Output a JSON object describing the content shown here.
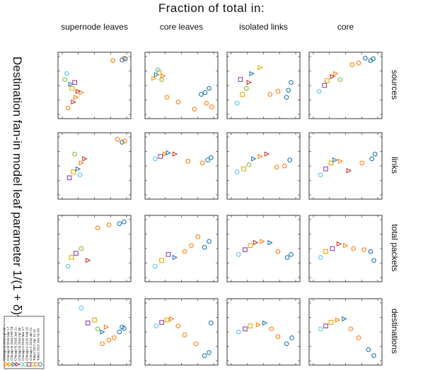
{
  "title": "Fraction of total in:",
  "y_axis_label": "Destination fan-in model leaf parameter 1/(1 + δ)^α",
  "columns": [
    "supernode leaves",
    "core leaves",
    "isolated links",
    "core"
  ],
  "rows": [
    "sources",
    "links",
    "total packets",
    "destinations"
  ],
  "legend_items": [
    {
      "label": "Tokyo 2015 Dec 02-03",
      "marker": "circle",
      "color": "#1f77b4"
    },
    {
      "label": "Tokyo 2017 Apr 12-13",
      "marker": "circle",
      "color": "#ff7f0e"
    },
    {
      "label": "Chicago A 2016 Jan 21",
      "marker": "square",
      "color": "#e6a800"
    },
    {
      "label": "Chicago A 2016 Feb 18",
      "marker": "square",
      "color": "#8e44ad"
    },
    {
      "label": "Chicago A 2016 Mar 17",
      "marker": "circle",
      "color": "#7fbf3f"
    },
    {
      "label": "Chicago B 2016 Apr 06",
      "marker": "circle",
      "color": "#56c6e8"
    },
    {
      "label": "Chicago B 2016 Jan 21",
      "marker": "triangle",
      "color": "#c0392b"
    },
    {
      "label": "Chicago B 2016 Feb 18",
      "marker": "triangle",
      "color": "#1f77b4"
    },
    {
      "label": "Chicago B 2016 Mar 17",
      "marker": "triangle",
      "color": "#e6a800"
    },
    {
      "label": "Chicago B 2016 Apr 06",
      "marker": "triangle",
      "color": "#ff7f0e"
    }
  ],
  "chart_data": {
    "type": "scatter",
    "layout": "4x4 facet grid, rotated 90 degrees",
    "note": "Tick labels are rotated and illegible at this resolution; values are approximate fractions (0 to 1) read from marker positions.",
    "xlim": [
      0,
      1
    ],
    "ylim": [
      0,
      1
    ],
    "grid": false,
    "legend_position": "bottom-left",
    "panels": [
      {
        "row": "sources",
        "col": "supernode leaves",
        "points": [
          [
            0.1,
            0.12,
            1
          ],
          [
            0.18,
            0.22,
            6
          ],
          [
            0.22,
            0.3,
            9
          ],
          [
            0.3,
            0.38,
            9
          ],
          [
            0.16,
            0.45,
            2
          ],
          [
            0.2,
            0.55,
            3
          ],
          [
            0.05,
            0.6,
            4
          ],
          [
            0.08,
            0.7,
            5
          ],
          [
            0.14,
            0.52,
            7
          ],
          [
            0.25,
            0.4,
            6
          ],
          [
            0.92,
            0.93,
            0
          ],
          [
            0.95,
            0.96,
            1
          ],
          [
            0.97,
            0.95,
            0
          ],
          [
            0.78,
            0.92,
            1
          ]
        ]
      },
      {
        "row": "sources",
        "col": "core leaves",
        "points": [
          [
            0.08,
            0.62,
            8
          ],
          [
            0.12,
            0.68,
            7
          ],
          [
            0.16,
            0.72,
            2
          ],
          [
            0.2,
            0.6,
            4
          ],
          [
            0.14,
            0.76,
            5
          ],
          [
            0.22,
            0.66,
            9
          ],
          [
            0.28,
            0.3,
            1
          ],
          [
            0.45,
            0.22,
            1
          ],
          [
            0.7,
            0.1,
            1
          ],
          [
            0.8,
            0.35,
            0
          ],
          [
            0.86,
            0.38,
            0
          ],
          [
            0.92,
            0.45,
            0
          ],
          [
            0.96,
            0.14,
            1
          ],
          [
            0.88,
            0.2,
            1
          ]
        ]
      },
      {
        "row": "sources",
        "col": "isolated links",
        "points": [
          [
            0.1,
            0.2,
            5
          ],
          [
            0.18,
            0.35,
            2
          ],
          [
            0.24,
            0.45,
            4
          ],
          [
            0.15,
            0.6,
            3
          ],
          [
            0.28,
            0.55,
            6
          ],
          [
            0.32,
            0.7,
            7
          ],
          [
            0.45,
            0.8,
            8
          ],
          [
            0.6,
            0.35,
            1
          ],
          [
            0.72,
            0.4,
            1
          ],
          [
            0.85,
            0.3,
            0
          ],
          [
            0.88,
            0.42,
            0
          ],
          [
            0.92,
            0.55,
            0
          ]
        ]
      },
      {
        "row": "sources",
        "col": "core",
        "points": [
          [
            0.1,
            0.4,
            5
          ],
          [
            0.18,
            0.5,
            3
          ],
          [
            0.22,
            0.58,
            2
          ],
          [
            0.3,
            0.65,
            6
          ],
          [
            0.35,
            0.7,
            9
          ],
          [
            0.42,
            0.6,
            4
          ],
          [
            0.6,
            0.85,
            1
          ],
          [
            0.7,
            0.88,
            1
          ],
          [
            0.88,
            0.92,
            0
          ],
          [
            0.92,
            0.95,
            0
          ],
          [
            0.8,
            0.96,
            0
          ]
        ]
      },
      {
        "row": "links",
        "col": "supernode leaves",
        "points": [
          [
            0.12,
            0.3,
            3
          ],
          [
            0.18,
            0.4,
            2
          ],
          [
            0.25,
            0.45,
            7
          ],
          [
            0.3,
            0.55,
            9
          ],
          [
            0.35,
            0.62,
            6
          ],
          [
            0.2,
            0.7,
            4
          ],
          [
            0.28,
            0.35,
            5
          ],
          [
            0.92,
            0.9,
            0
          ],
          [
            0.96,
            0.92,
            1
          ],
          [
            0.85,
            0.95,
            1
          ]
        ]
      },
      {
        "row": "links",
        "col": "core leaves",
        "points": [
          [
            0.1,
            0.62,
            5
          ],
          [
            0.18,
            0.66,
            3
          ],
          [
            0.25,
            0.7,
            9
          ],
          [
            0.3,
            0.72,
            7
          ],
          [
            0.4,
            0.7,
            6
          ],
          [
            0.6,
            0.58,
            1
          ],
          [
            0.82,
            0.55,
            1
          ],
          [
            0.9,
            0.6,
            0
          ],
          [
            0.95,
            0.64,
            0
          ]
        ]
      },
      {
        "row": "links",
        "col": "isolated links",
        "points": [
          [
            0.1,
            0.4,
            5
          ],
          [
            0.2,
            0.45,
            2
          ],
          [
            0.28,
            0.52,
            4
          ],
          [
            0.35,
            0.62,
            7
          ],
          [
            0.45,
            0.66,
            9
          ],
          [
            0.55,
            0.7,
            6
          ],
          [
            0.7,
            0.48,
            1
          ],
          [
            0.82,
            0.5,
            1
          ],
          [
            0.9,
            0.6,
            0
          ]
        ]
      },
      {
        "row": "links",
        "col": "core",
        "points": [
          [
            0.12,
            0.35,
            5
          ],
          [
            0.2,
            0.45,
            3
          ],
          [
            0.28,
            0.55,
            2
          ],
          [
            0.34,
            0.6,
            7
          ],
          [
            0.42,
            0.58,
            9
          ],
          [
            0.55,
            0.42,
            6
          ],
          [
            0.75,
            0.55,
            1
          ],
          [
            0.9,
            0.62,
            0
          ],
          [
            0.95,
            0.7,
            0
          ]
        ]
      },
      {
        "row": "total packets",
        "col": "supernode leaves",
        "points": [
          [
            0.1,
            0.2,
            5
          ],
          [
            0.15,
            0.35,
            2
          ],
          [
            0.22,
            0.42,
            3
          ],
          [
            0.3,
            0.5,
            4
          ],
          [
            0.4,
            0.3,
            6
          ],
          [
            0.55,
            0.85,
            1
          ],
          [
            0.72,
            0.9,
            1
          ],
          [
            0.88,
            0.92,
            0
          ],
          [
            0.95,
            0.95,
            0
          ]
        ]
      },
      {
        "row": "total packets",
        "col": "core leaves",
        "points": [
          [
            0.1,
            0.2,
            5
          ],
          [
            0.2,
            0.3,
            2
          ],
          [
            0.3,
            0.4,
            3
          ],
          [
            0.4,
            0.35,
            7
          ],
          [
            0.55,
            0.45,
            1
          ],
          [
            0.65,
            0.55,
            1
          ],
          [
            0.75,
            0.7,
            1
          ],
          [
            0.85,
            0.52,
            0
          ],
          [
            0.92,
            0.62,
            0
          ]
        ]
      },
      {
        "row": "total packets",
        "col": "isolated links",
        "points": [
          [
            0.12,
            0.4,
            5
          ],
          [
            0.22,
            0.48,
            3
          ],
          [
            0.3,
            0.55,
            2
          ],
          [
            0.38,
            0.6,
            6
          ],
          [
            0.48,
            0.62,
            9
          ],
          [
            0.6,
            0.6,
            7
          ],
          [
            0.72,
            0.45,
            1
          ],
          [
            0.86,
            0.35,
            0
          ],
          [
            0.92,
            0.4,
            0
          ]
        ]
      },
      {
        "row": "total packets",
        "col": "core",
        "points": [
          [
            0.12,
            0.35,
            5
          ],
          [
            0.2,
            0.45,
            2
          ],
          [
            0.3,
            0.5,
            3
          ],
          [
            0.4,
            0.58,
            6
          ],
          [
            0.5,
            0.55,
            9
          ],
          [
            0.62,
            0.5,
            1
          ],
          [
            0.78,
            0.48,
            1
          ],
          [
            0.88,
            0.45,
            0
          ],
          [
            0.93,
            0.3,
            0
          ]
        ]
      },
      {
        "row": "destinations",
        "col": "supernode leaves",
        "points": [
          [
            0.3,
            0.9,
            5
          ],
          [
            0.4,
            0.65,
            3
          ],
          [
            0.5,
            0.7,
            2
          ],
          [
            0.55,
            0.55,
            4
          ],
          [
            0.62,
            0.5,
            7
          ],
          [
            0.68,
            0.58,
            9
          ],
          [
            0.62,
            0.3,
            1
          ],
          [
            0.72,
            0.36,
            1
          ],
          [
            0.8,
            0.4,
            1
          ],
          [
            0.88,
            0.5,
            0
          ],
          [
            0.92,
            0.58,
            0
          ],
          [
            0.95,
            0.56,
            0
          ]
        ]
      },
      {
        "row": "destinations",
        "col": "core leaves",
        "points": [
          [
            0.12,
            0.6,
            5
          ],
          [
            0.2,
            0.66,
            3
          ],
          [
            0.28,
            0.7,
            2
          ],
          [
            0.35,
            0.72,
            9
          ],
          [
            0.45,
            0.6,
            1
          ],
          [
            0.55,
            0.45,
            1
          ],
          [
            0.72,
            0.3,
            1
          ],
          [
            0.85,
            0.1,
            0
          ],
          [
            0.92,
            0.15,
            0
          ],
          [
            0.95,
            0.65,
            0
          ]
        ]
      },
      {
        "row": "destinations",
        "col": "isolated links",
        "points": [
          [
            0.12,
            0.5,
            5
          ],
          [
            0.22,
            0.55,
            3
          ],
          [
            0.3,
            0.6,
            2
          ],
          [
            0.42,
            0.62,
            9
          ],
          [
            0.52,
            0.65,
            7
          ],
          [
            0.62,
            0.55,
            1
          ],
          [
            0.72,
            0.42,
            1
          ],
          [
            0.85,
            0.3,
            0
          ],
          [
            0.93,
            0.4,
            0
          ]
        ]
      },
      {
        "row": "destinations",
        "col": "core",
        "points": [
          [
            0.12,
            0.55,
            5
          ],
          [
            0.2,
            0.6,
            3
          ],
          [
            0.28,
            0.66,
            2
          ],
          [
            0.38,
            0.7,
            9
          ],
          [
            0.48,
            0.72,
            7
          ],
          [
            0.58,
            0.55,
            1
          ],
          [
            0.7,
            0.4,
            1
          ],
          [
            0.85,
            0.2,
            0
          ],
          [
            0.93,
            0.1,
            0
          ]
        ]
      }
    ]
  }
}
